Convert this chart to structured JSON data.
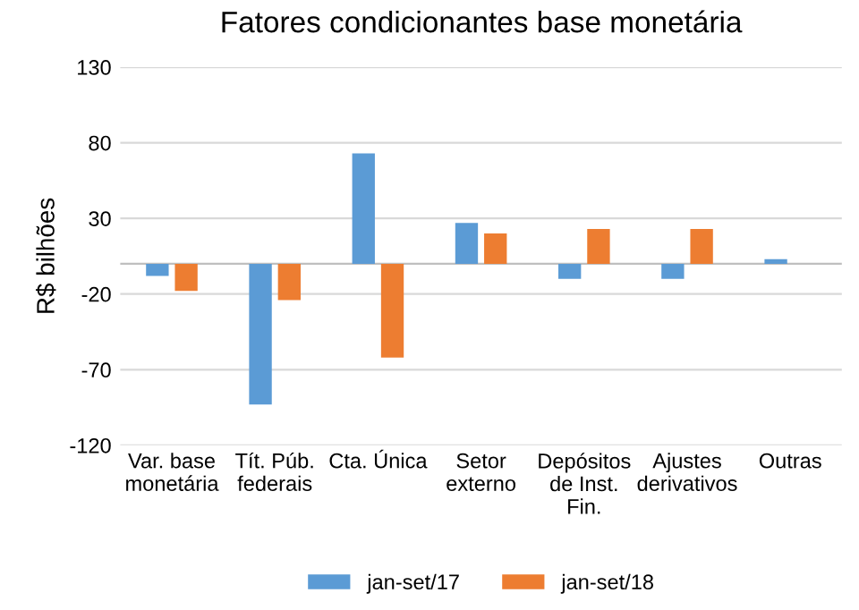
{
  "chart_data": {
    "type": "bar",
    "title": "Fatores condicionantes base monetária",
    "ylabel": "R$ bilhões",
    "categories": [
      "Var. base\nmonetária",
      "Tít. Púb.\nfederais",
      "Cta. Única",
      "Setor\nexterno",
      "Depósitos\nde Inst.\nFin.",
      "Ajustes\nderivativos",
      "Outras"
    ],
    "series": [
      {
        "name": "jan-set/17",
        "color": "#5b9bd5",
        "values": [
          -8,
          -93,
          73,
          27,
          -10,
          -10,
          3
        ]
      },
      {
        "name": "jan-set/18",
        "color": "#ed7d31",
        "values": [
          -18,
          -24,
          -62,
          20,
          23,
          23,
          null
        ]
      }
    ],
    "ylim": [
      -120,
      130
    ],
    "yticks": [
      -120,
      -70,
      -20,
      30,
      80,
      130
    ],
    "grid": "y",
    "legend": "bottom"
  }
}
